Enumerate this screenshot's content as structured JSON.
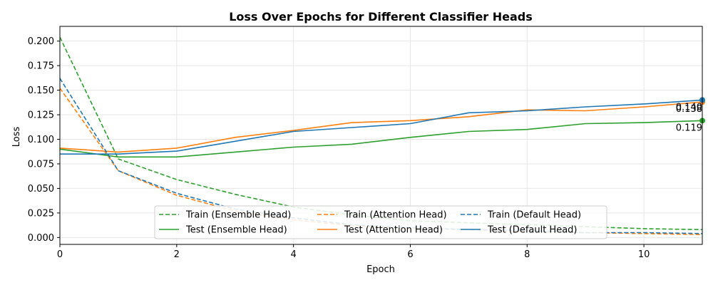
{
  "chart_data": {
    "type": "line",
    "title": "Loss Over Epochs for Different Classifier Heads",
    "xlabel": "Epoch",
    "ylabel": "Loss",
    "xlim": [
      0,
      11
    ],
    "ylim": [
      -0.007,
      0.215
    ],
    "xticks": [
      0,
      2,
      4,
      6,
      8,
      10
    ],
    "yticks": [
      0.0,
      0.025,
      0.05,
      0.075,
      0.1,
      0.125,
      0.15,
      0.175,
      0.2
    ],
    "ytick_labels": [
      "0.000",
      "0.025",
      "0.050",
      "0.075",
      "0.100",
      "0.125",
      "0.150",
      "0.175",
      "0.200"
    ],
    "grid": true,
    "legend_placement": "lower center",
    "legend_columns": 3,
    "x": [
      0,
      1,
      2,
      3,
      4,
      5,
      6,
      7,
      8,
      9,
      10,
      11
    ],
    "series": [
      {
        "name": "Train (Ensemble Head)",
        "style": "dashed",
        "color": "#2ca02c",
        "values": [
          0.204,
          0.08,
          0.059,
          0.044,
          0.031,
          0.023,
          0.017,
          0.015,
          0.013,
          0.011,
          0.009,
          0.008
        ]
      },
      {
        "name": "Test (Ensemble Head)",
        "style": "solid",
        "color": "#2ca02c",
        "values": [
          0.09,
          0.082,
          0.082,
          0.087,
          0.092,
          0.095,
          0.102,
          0.108,
          0.11,
          0.116,
          0.117,
          0.119
        ]
      },
      {
        "name": "Train (Attention Head)",
        "style": "dashed",
        "color": "#ff7f0e",
        "values": [
          0.152,
          0.068,
          0.043,
          0.027,
          0.018,
          0.012,
          0.009,
          0.008,
          0.006,
          0.005,
          0.004,
          0.003
        ]
      },
      {
        "name": "Test (Attention Head)",
        "style": "solid",
        "color": "#ff7f0e",
        "values": [
          0.091,
          0.087,
          0.091,
          0.102,
          0.109,
          0.117,
          0.119,
          0.123,
          0.13,
          0.129,
          0.133,
          0.138
        ]
      },
      {
        "name": "Train (Default Head)",
        "style": "dashed",
        "color": "#1f77b4",
        "values": [
          0.162,
          0.068,
          0.045,
          0.029,
          0.02,
          0.013,
          0.01,
          0.008,
          0.007,
          0.005,
          0.005,
          0.004
        ]
      },
      {
        "name": "Test (Default Head)",
        "style": "solid",
        "color": "#1f77b4",
        "values": [
          0.085,
          0.085,
          0.088,
          0.098,
          0.108,
          0.112,
          0.116,
          0.127,
          0.129,
          0.133,
          0.136,
          0.14
        ]
      }
    ],
    "annotations": [
      {
        "series": "Test (Ensemble Head)",
        "x": 11,
        "y": 0.119,
        "text": "0.119",
        "color": "#2ca02c"
      },
      {
        "series": "Test (Attention Head)",
        "x": 11,
        "y": 0.138,
        "text": "0.138",
        "color": "#ff7f0e"
      },
      {
        "series": "Test (Default Head)",
        "x": 11,
        "y": 0.14,
        "text": "0.140",
        "color": "#1f77b4"
      }
    ]
  }
}
